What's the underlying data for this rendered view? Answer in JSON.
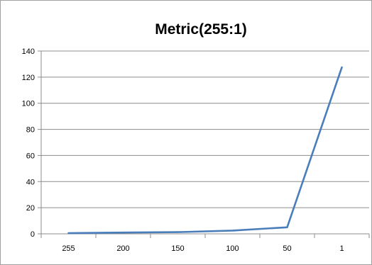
{
  "chart_data": {
    "type": "line",
    "title": "Metric(255:1)",
    "xlabel": "",
    "ylabel": "",
    "categories": [
      "255",
      "200",
      "150",
      "100",
      "50",
      "1"
    ],
    "series": [
      {
        "values": [
          0.5,
          1,
          1.3,
          2.5,
          5,
          127.5
        ],
        "color": "#4a7ebb"
      }
    ],
    "ylim": [
      0,
      140
    ],
    "yticks": [
      "0",
      "20",
      "40",
      "60",
      "80",
      "100",
      "120",
      "140"
    ],
    "grid": true,
    "legend": "none"
  }
}
